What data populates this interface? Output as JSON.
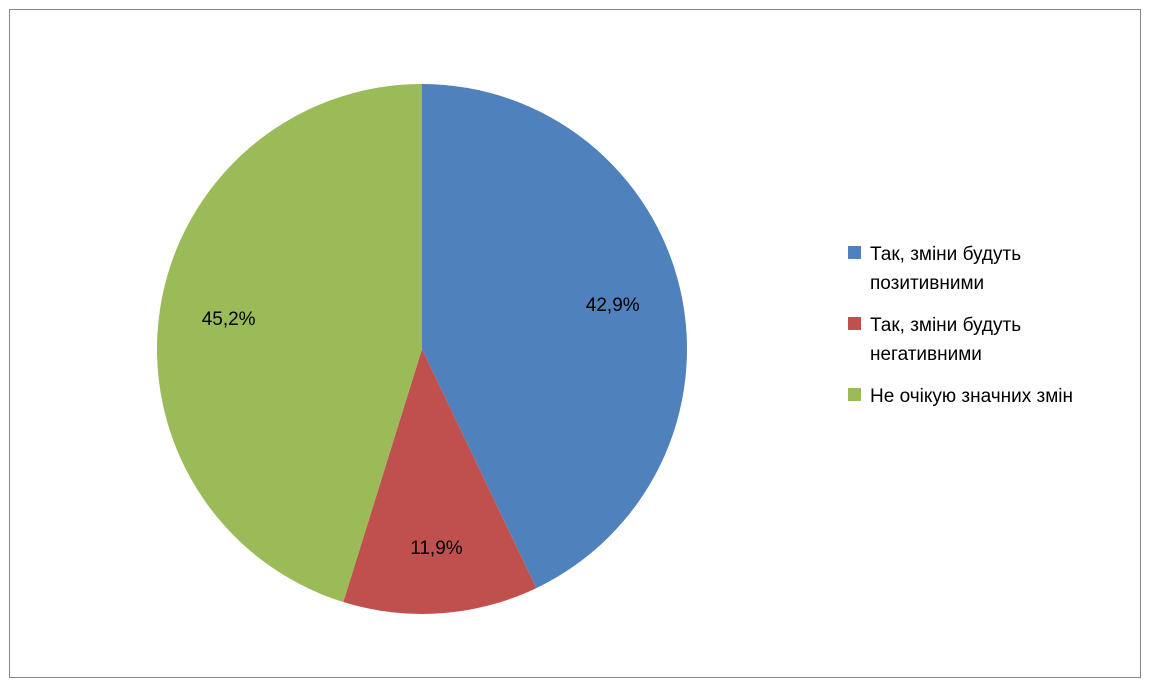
{
  "chart_data": {
    "type": "pie",
    "title": "",
    "categories": [
      "Так, зміни будуть позитивними",
      "Так, зміни будуть негативними",
      "Не очікую значних змін"
    ],
    "values": [
      42.9,
      11.9,
      45.2
    ],
    "data_labels": [
      "42,9%",
      "11,9%",
      "45,2%"
    ],
    "colors": [
      "#4f81bd",
      "#c0504d",
      "#9bbb59"
    ],
    "start_angle_deg": 0,
    "direction": "clockwise",
    "legend_position": "right"
  },
  "legend": {
    "items": [
      {
        "line1": "Так, зміни будуть",
        "line2": "позитивними",
        "color": "#4f81bd"
      },
      {
        "line1": "Так, зміни будуть",
        "line2": "негативними",
        "color": "#c0504d"
      },
      {
        "line1": "Не очікую значних змін",
        "line2": "",
        "color": "#9bbb59"
      }
    ]
  }
}
